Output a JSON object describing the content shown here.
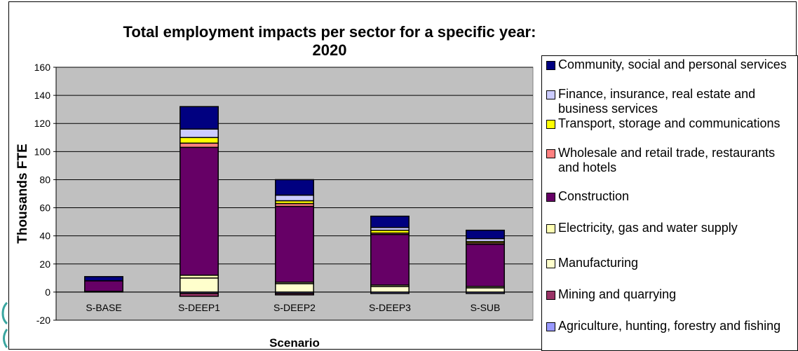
{
  "chart_data": {
    "type": "bar",
    "stacked": true,
    "title": "Total employment impacts per sector for a specific year: 2020",
    "xlabel": "Scenario",
    "ylabel": "Thousands FTE",
    "ylim": [
      -20,
      160
    ],
    "yticks": [
      -20,
      0,
      20,
      40,
      60,
      80,
      100,
      120,
      140,
      160
    ],
    "grid": true,
    "legend_position": "right",
    "categories": [
      "S-BASE",
      "S-DEEP1",
      "S-DEEP2",
      "S-DEEP3",
      "S-SUB"
    ],
    "series": [
      {
        "name": "Agriculture, hunting, forestry and fishing",
        "color": "#9999ff",
        "values": [
          0,
          -1,
          -1,
          -1,
          -1
        ]
      },
      {
        "name": "Mining and quarrying",
        "color": "#993366",
        "values": [
          0,
          -2,
          -1,
          0,
          0
        ]
      },
      {
        "name": "Manufacturing",
        "color": "#ffffcc",
        "values": [
          0.5,
          10,
          6,
          4,
          3
        ]
      },
      {
        "name": "Electricity, gas and water supply",
        "color": "#ffffb3",
        "values": [
          0,
          2,
          1,
          1,
          1
        ]
      },
      {
        "name": "Construction",
        "color": "#660066",
        "values": [
          7.5,
          91,
          54,
          36,
          30
        ]
      },
      {
        "name": "Wholesale and retail trade, restaurants and hotels",
        "color": "#ff8080",
        "values": [
          0,
          3,
          2,
          1,
          1
        ]
      },
      {
        "name": "Transport, storage and communications",
        "color": "#ffff00",
        "values": [
          0,
          4,
          2,
          2,
          1
        ]
      },
      {
        "name": "Finance, insurance, real estate and business services",
        "color": "#ccccff",
        "values": [
          0,
          6,
          4,
          2,
          2
        ]
      },
      {
        "name": "Community, social and personal services",
        "color": "#000080",
        "values": [
          3,
          16,
          11,
          8,
          6
        ]
      }
    ],
    "plot_bg": "#c0c0c0"
  }
}
